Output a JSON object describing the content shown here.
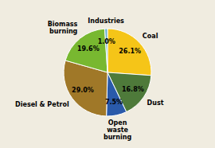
{
  "chart_data": {
    "type": "pie",
    "categories": [
      "Coal",
      "Dust",
      "Open\nwaste\nburning",
      "Diesel & Petrol",
      "Biomass\nburning",
      "Industries"
    ],
    "values": [
      26.1,
      16.8,
      7.5,
      29.0,
      19.6,
      1.0
    ],
    "value_labels": [
      "26.1%",
      "16.8%",
      "7.5%",
      "29.0%",
      "19.6%",
      "1.0%"
    ],
    "colors": [
      "#f5c518",
      "#4e7a3a",
      "#2a5aaa",
      "#a07828",
      "#78b830",
      "#6ab0d0"
    ],
    "data_labels": true
  }
}
